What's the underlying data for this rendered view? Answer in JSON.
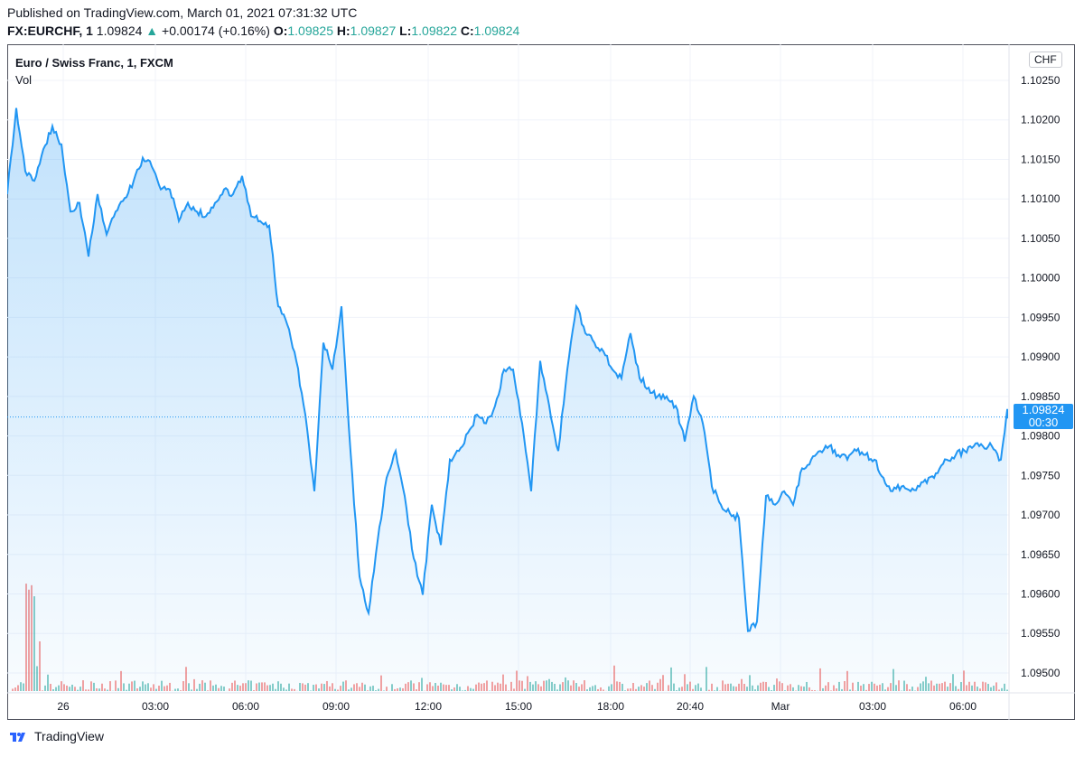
{
  "header": {
    "published": "Published on TradingView.com, March 01, 2021 07:31:32 UTC",
    "symbol": "FX:EURCHF, 1",
    "last": "1.09824",
    "arrow": "▲",
    "change": "+0.00174 (+0.16%)",
    "o_label": "O:",
    "o": "1.09825",
    "h_label": "H:",
    "h": "1.09827",
    "l_label": "L:",
    "l": "1.09822",
    "c_label": "C:",
    "c": "1.09824"
  },
  "legend": {
    "title": "Euro / Swiss Franc, 1, FXCM",
    "vol": "Vol"
  },
  "currency_button": "CHF",
  "current_price": {
    "price": "1.09824",
    "countdown": "00:30"
  },
  "footer": {
    "brand": "TradingView"
  },
  "colors": {
    "line": "#2196f3",
    "up": "#26a69a",
    "down": "#ef5350"
  },
  "chart_data": {
    "type": "area",
    "title": "Euro / Swiss Franc, 1, FXCM",
    "ylim": [
      1.0948,
      1.103
    ],
    "y_ticks": [
      "1.10250",
      "1.10200",
      "1.10150",
      "1.10100",
      "1.10050",
      "1.10000",
      "1.09950",
      "1.09900",
      "1.09850",
      "1.09800",
      "1.09750",
      "1.09700",
      "1.09650",
      "1.09600",
      "1.09550",
      "1.09500"
    ],
    "x_ticks": [
      "26",
      "03:00",
      "06:00",
      "09:00",
      "12:00",
      "15:00",
      "18:00",
      "20:40",
      "Mar",
      "03:00",
      "06:00"
    ],
    "grid": true,
    "prices": [
      1.10106,
      1.10215,
      1.10135,
      1.10123,
      1.10163,
      1.10192,
      1.10169,
      1.10084,
      1.10095,
      1.10027,
      1.10106,
      1.10055,
      1.10084,
      1.10101,
      1.10123,
      1.10152,
      1.10141,
      1.10112,
      1.10112,
      1.10072,
      1.10095,
      1.10084,
      1.10078,
      1.10095,
      1.10112,
      1.10106,
      1.10129,
      1.10078,
      1.10072,
      1.10066,
      1.09964,
      1.09941,
      1.09895,
      1.09827,
      1.0973,
      1.09918,
      1.09884,
      1.09964,
      1.09781,
      1.09622,
      1.09576,
      1.09667,
      1.09747,
      1.09781,
      1.09724,
      1.09645,
      1.09599,
      1.09713,
      1.09662,
      1.0977,
      1.09781,
      1.09804,
      1.09827,
      1.09816,
      1.09838,
      1.09884,
      1.09884,
      1.09816,
      1.0973,
      1.09895,
      1.09838,
      1.09781,
      1.09884,
      1.09964,
      1.0993,
      1.09918,
      1.09907,
      1.09884,
      1.09873,
      1.0993,
      1.09873,
      1.09861,
      1.0985,
      1.0985,
      1.09838,
      1.09793,
      1.0985,
      1.09816,
      1.09736,
      1.09713,
      1.09702,
      1.09696,
      1.09553,
      1.09565,
      1.09724,
      1.09713,
      1.0973,
      1.09713,
      1.09759,
      1.0977,
      1.09781,
      1.09787,
      1.09776,
      1.0977,
      1.09781,
      1.09776,
      1.0977,
      1.09747,
      1.0973,
      1.09736,
      1.0973,
      1.09736,
      1.09747,
      1.09753,
      1.0977,
      1.09776,
      1.09781,
      1.09787,
      1.09787,
      1.09787,
      1.0977,
      1.09833,
      1.09824
    ],
    "last_price": 1.09824
  }
}
